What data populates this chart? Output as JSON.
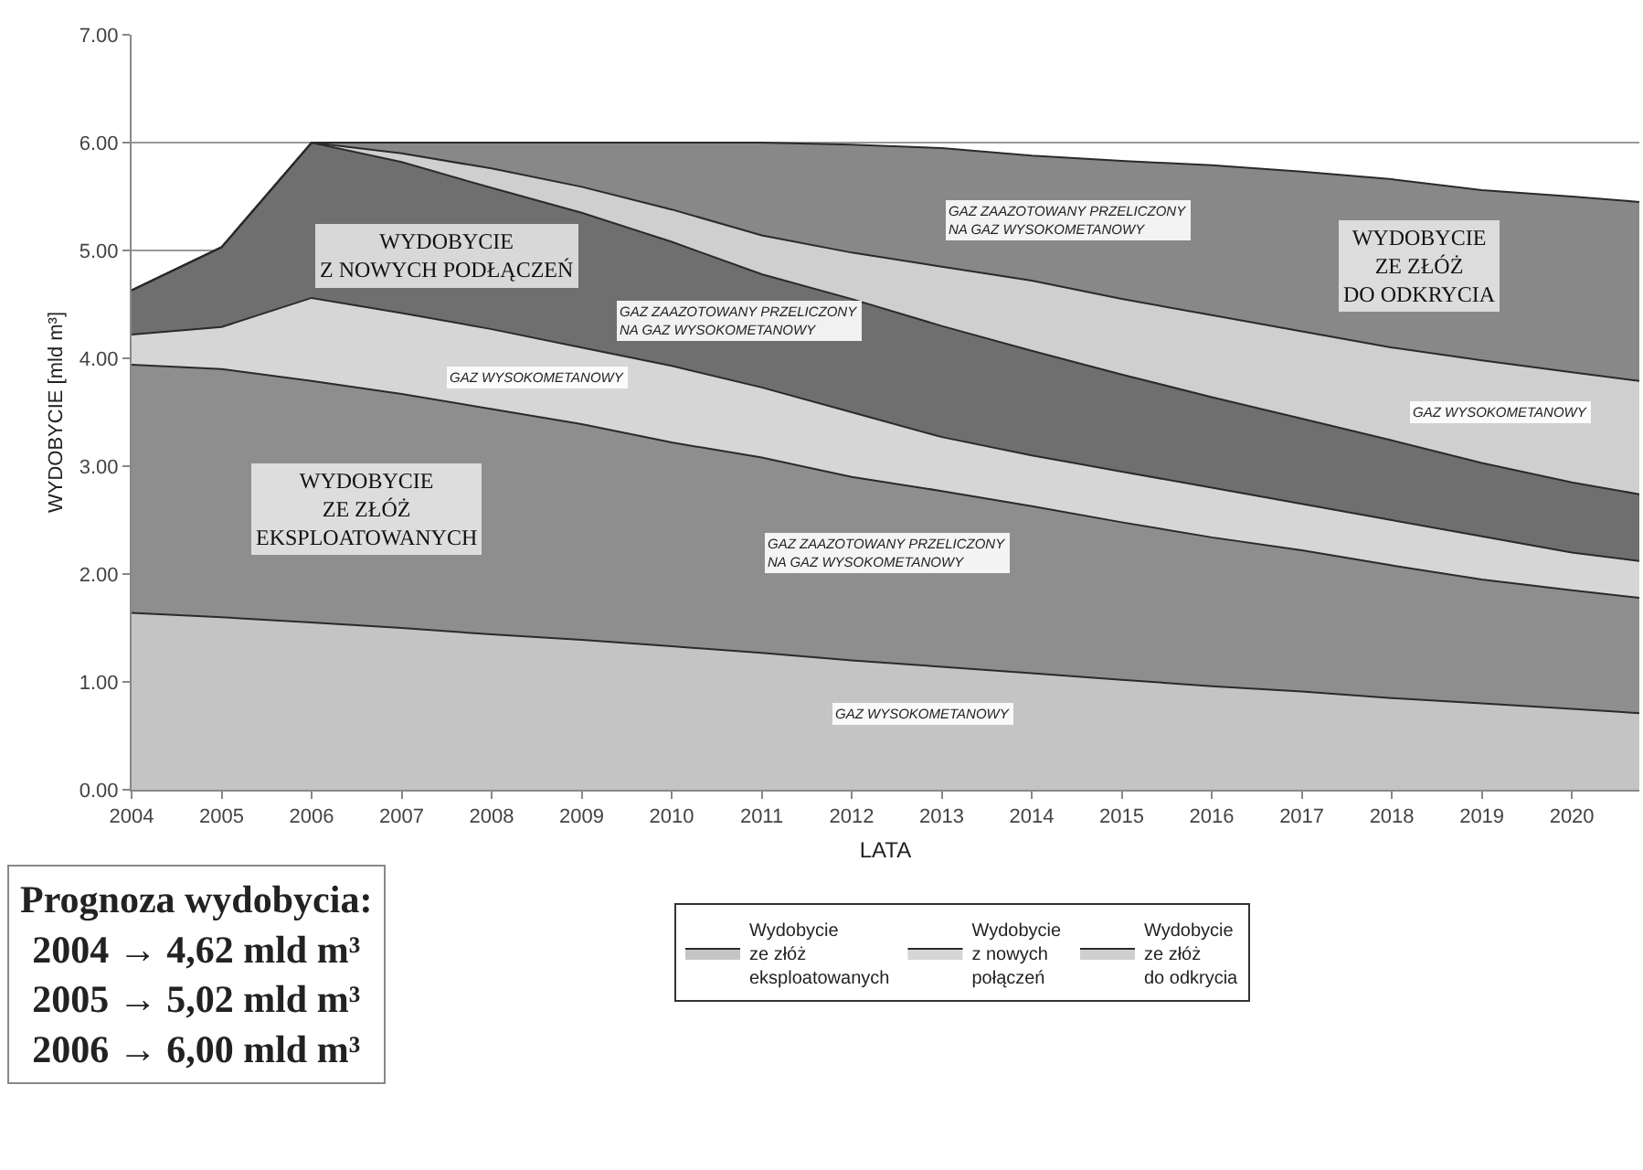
{
  "chart_data": {
    "type": "area",
    "stacked": true,
    "xlabel": "LATA",
    "ylabel": "WYDOBYCIE [mld m³]",
    "x": [
      2004,
      2005,
      2006,
      2007,
      2008,
      2009,
      2010,
      2011,
      2012,
      2013,
      2014,
      2015,
      2016,
      2017,
      2018,
      2019,
      2020,
      2020.75
    ],
    "series": [
      {
        "name": "Wydobycie\nze złóż\neksploatowanych",
        "color": "#c4c4c4",
        "values": [
          1.64,
          1.6,
          1.55,
          1.5,
          1.44,
          1.39,
          1.33,
          1.27,
          1.2,
          1.14,
          1.08,
          1.02,
          0.96,
          0.91,
          0.85,
          0.8,
          0.75,
          0.71
        ]
      },
      {
        "color": "#8e8e8e",
        "values": [
          2.3,
          2.3,
          2.24,
          2.17,
          2.09,
          2.0,
          1.89,
          1.81,
          1.7,
          1.63,
          1.55,
          1.46,
          1.38,
          1.31,
          1.23,
          1.15,
          1.1,
          1.07
        ]
      },
      {
        "name": "Wydobycie\nz nowych\npołączeń",
        "color": "#d6d6d6",
        "values": [
          0.28,
          0.39,
          0.77,
          0.75,
          0.74,
          0.71,
          0.71,
          0.65,
          0.6,
          0.5,
          0.47,
          0.47,
          0.46,
          0.43,
          0.42,
          0.4,
          0.35,
          0.34
        ]
      },
      {
        "color": "#6f6f6f",
        "values": [
          0.41,
          0.74,
          1.44,
          1.4,
          1.31,
          1.25,
          1.15,
          1.05,
          1.05,
          1.03,
          0.97,
          0.9,
          0.84,
          0.79,
          0.74,
          0.68,
          0.65,
          0.62
        ]
      },
      {
        "name": "Wydobycie\nze złóż\ndo odkrycia",
        "color": "#cfcfcf",
        "values": [
          0,
          0,
          0,
          0.08,
          0.18,
          0.24,
          0.3,
          0.36,
          0.43,
          0.55,
          0.65,
          0.7,
          0.76,
          0.81,
          0.86,
          0.95,
          1.02,
          1.05
        ]
      },
      {
        "color": "#888888",
        "values": [
          0,
          0,
          0,
          0.1,
          0.24,
          0.41,
          0.62,
          0.86,
          1.0,
          1.1,
          1.16,
          1.28,
          1.39,
          1.48,
          1.56,
          1.58,
          1.63,
          1.66
        ]
      }
    ],
    "xlim": [
      2004,
      2020.75
    ],
    "xticks": [
      2004,
      2005,
      2006,
      2007,
      2008,
      2009,
      2010,
      2011,
      2012,
      2013,
      2014,
      2015,
      2016,
      2017,
      2018,
      2019,
      2020
    ],
    "ylim": [
      0,
      7
    ],
    "yticks": [
      {
        "value": 0,
        "label": "0.00"
      },
      {
        "value": 1,
        "label": "1.00"
      },
      {
        "value": 2,
        "label": "2.00"
      },
      {
        "value": 3,
        "label": "3.00"
      },
      {
        "value": 4,
        "label": "4.00"
      },
      {
        "value": 5,
        "label": "5.00"
      },
      {
        "value": 6,
        "label": "6.00"
      },
      {
        "value": 7,
        "label": "7.00"
      }
    ],
    "grid": "y",
    "legend": "bottom",
    "annotations": [
      "GAZ ZAAZOTOWANY PRZELICZONY\nNA GAZ WYSOKOMETANOWY",
      "WYDOBYCIE\nZ NOWYCH PODŁĄCZEŃ",
      "GAZ WYSOKOMETANOWY",
      "WYDOBYCIE\nZE ZŁÓŻ\nEKSPLOATOWANYCH",
      "GAZ ZAAZOTOWANY PRZELICZONY\nNA GAZ WYSOKOMETANOWY",
      "GAZ WYSOKOMETANOWY",
      "GAZ ZAAZOTOWANY PRZELICZONY\nNA GAZ WYSOKOMETANOWY",
      "WYDOBYCIE\nZE ZŁÓŻ\nDO ODKRYCIA",
      "GAZ WYSOKOMETANOWY",
      "Prognoza wydobycia:",
      "2004 → 4,62 mld m³",
      "2005 → 5,02 mld m³",
      "2006 → 6,00 mld m³"
    ]
  }
}
